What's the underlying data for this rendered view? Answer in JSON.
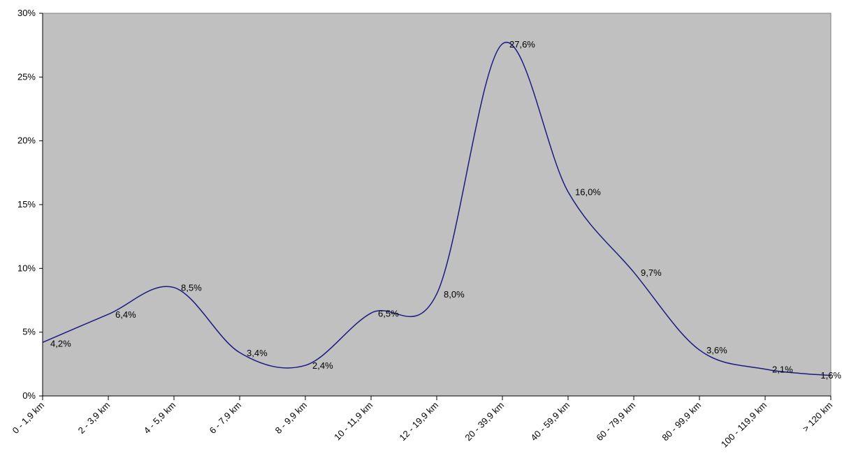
{
  "chart_data": {
    "type": "line",
    "title": "",
    "xlabel": "",
    "ylabel": "",
    "categories": [
      "0 - 1,9 km",
      "2 - 3,9 km",
      "4 - 5,9 km",
      "6 - 7,9 km",
      "8 - 9,9 km",
      "10 - 11,9 km",
      "12 - 19,9 km",
      "20 - 39,9 km",
      "40 - 59,9 km",
      "60 - 79,9 km",
      "80 - 99,9 km",
      "100 - 119,9 km",
      "> 120 km"
    ],
    "series": [
      {
        "values": [
          4.2,
          6.4,
          8.5,
          3.4,
          2.4,
          6.5,
          8.0,
          27.6,
          16.0,
          9.7,
          3.6,
          2.1,
          1.6
        ],
        "labels": [
          "4,2%",
          "6,4%",
          "8,5%",
          "3,4%",
          "2,4%",
          "6,5%",
          "8,0%",
          "27,6%",
          "16,0%",
          "9,7%",
          "3,6%",
          "2,1%",
          "1,6%"
        ]
      }
    ],
    "y_ticks": [
      "0%",
      "5%",
      "10%",
      "15%",
      "20%",
      "25%",
      "30%"
    ],
    "ylim": [
      0,
      30
    ],
    "grid": false,
    "legend": "none",
    "colors": {
      "plot_background": "#c0c0c0",
      "line": "#1a1a80",
      "axis": "#000000"
    }
  }
}
